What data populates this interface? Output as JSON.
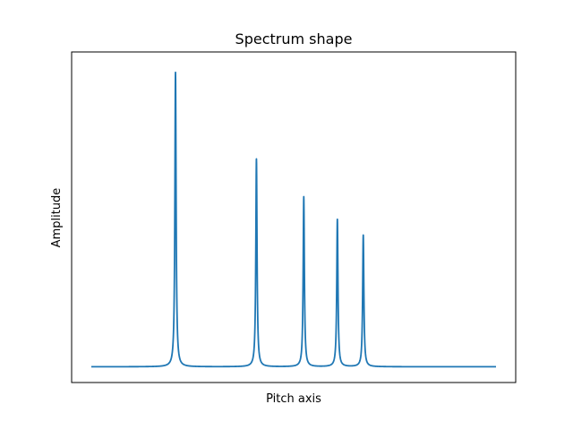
{
  "chart_data": {
    "type": "line",
    "title": "Spectrum shape",
    "xlabel": "Pitch axis",
    "ylabel": "Amplitude",
    "xlim": [
      0,
      1
    ],
    "ylim": [
      -0.05,
      1.0
    ],
    "grid": false,
    "ticks_visible": false,
    "series": [
      {
        "color": "#1f77b4",
        "baseline": 0,
        "peaks": [
          {
            "x": 0.208,
            "height": 0.935,
            "width": 0.0018
          },
          {
            "x": 0.408,
            "height": 0.66,
            "width": 0.0018
          },
          {
            "x": 0.525,
            "height": 0.54,
            "width": 0.0018
          },
          {
            "x": 0.608,
            "height": 0.468,
            "width": 0.0018
          },
          {
            "x": 0.672,
            "height": 0.418,
            "width": 0.0018
          }
        ]
      }
    ]
  }
}
